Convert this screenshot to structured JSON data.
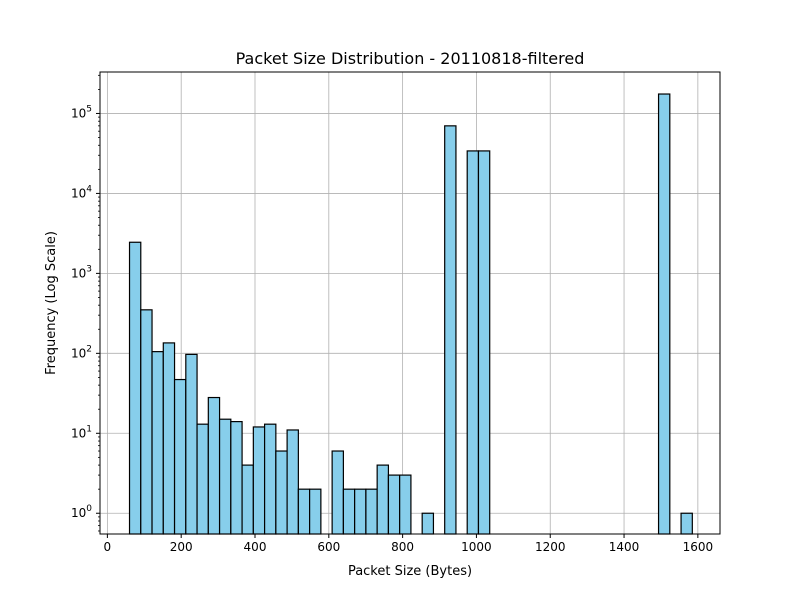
{
  "chart_data": {
    "type": "bar",
    "title": "Packet Size Distribution - 20110818-filtered",
    "xlabel": "Packet Size (Bytes)",
    "ylabel": "Frequency (Log Scale)",
    "xlim": [
      -20,
      1660
    ],
    "ylim": [
      0.55,
      330000
    ],
    "yscale": "log",
    "grid": true,
    "bar_color": "#87ceeb",
    "edge_color": "#000000",
    "bin_width": 30.5,
    "x_ticks": [
      0,
      200,
      400,
      600,
      800,
      1000,
      1200,
      1400,
      1600
    ],
    "y_ticks": [
      {
        "value": 1,
        "base": "10",
        "exp": "0"
      },
      {
        "value": 10,
        "base": "10",
        "exp": "1"
      },
      {
        "value": 100,
        "base": "10",
        "exp": "2"
      },
      {
        "value": 1000,
        "base": "10",
        "exp": "3"
      },
      {
        "value": 10000,
        "base": "10",
        "exp": "4"
      },
      {
        "value": 100000,
        "base": "10",
        "exp": "5"
      }
    ],
    "bins": [
      {
        "x": 60,
        "value": 2450
      },
      {
        "x": 90.5,
        "value": 350
      },
      {
        "x": 121,
        "value": 105
      },
      {
        "x": 151.5,
        "value": 135
      },
      {
        "x": 182,
        "value": 47
      },
      {
        "x": 212.5,
        "value": 97
      },
      {
        "x": 243,
        "value": 13
      },
      {
        "x": 273.5,
        "value": 28
      },
      {
        "x": 304,
        "value": 15
      },
      {
        "x": 334.5,
        "value": 14
      },
      {
        "x": 365,
        "value": 4
      },
      {
        "x": 395.5,
        "value": 12
      },
      {
        "x": 426,
        "value": 13
      },
      {
        "x": 456.5,
        "value": 6
      },
      {
        "x": 487,
        "value": 11
      },
      {
        "x": 517.5,
        "value": 2
      },
      {
        "x": 548,
        "value": 2
      },
      {
        "x": 609,
        "value": 6
      },
      {
        "x": 639.5,
        "value": 2
      },
      {
        "x": 670,
        "value": 2
      },
      {
        "x": 700.5,
        "value": 2
      },
      {
        "x": 731,
        "value": 4
      },
      {
        "x": 761.5,
        "value": 3
      },
      {
        "x": 792,
        "value": 3
      },
      {
        "x": 853,
        "value": 1
      },
      {
        "x": 914,
        "value": 70000
      },
      {
        "x": 975,
        "value": 34000
      },
      {
        "x": 1005.5,
        "value": 34000
      },
      {
        "x": 1493.5,
        "value": 175000
      },
      {
        "x": 1554.5,
        "value": 1
      }
    ]
  }
}
